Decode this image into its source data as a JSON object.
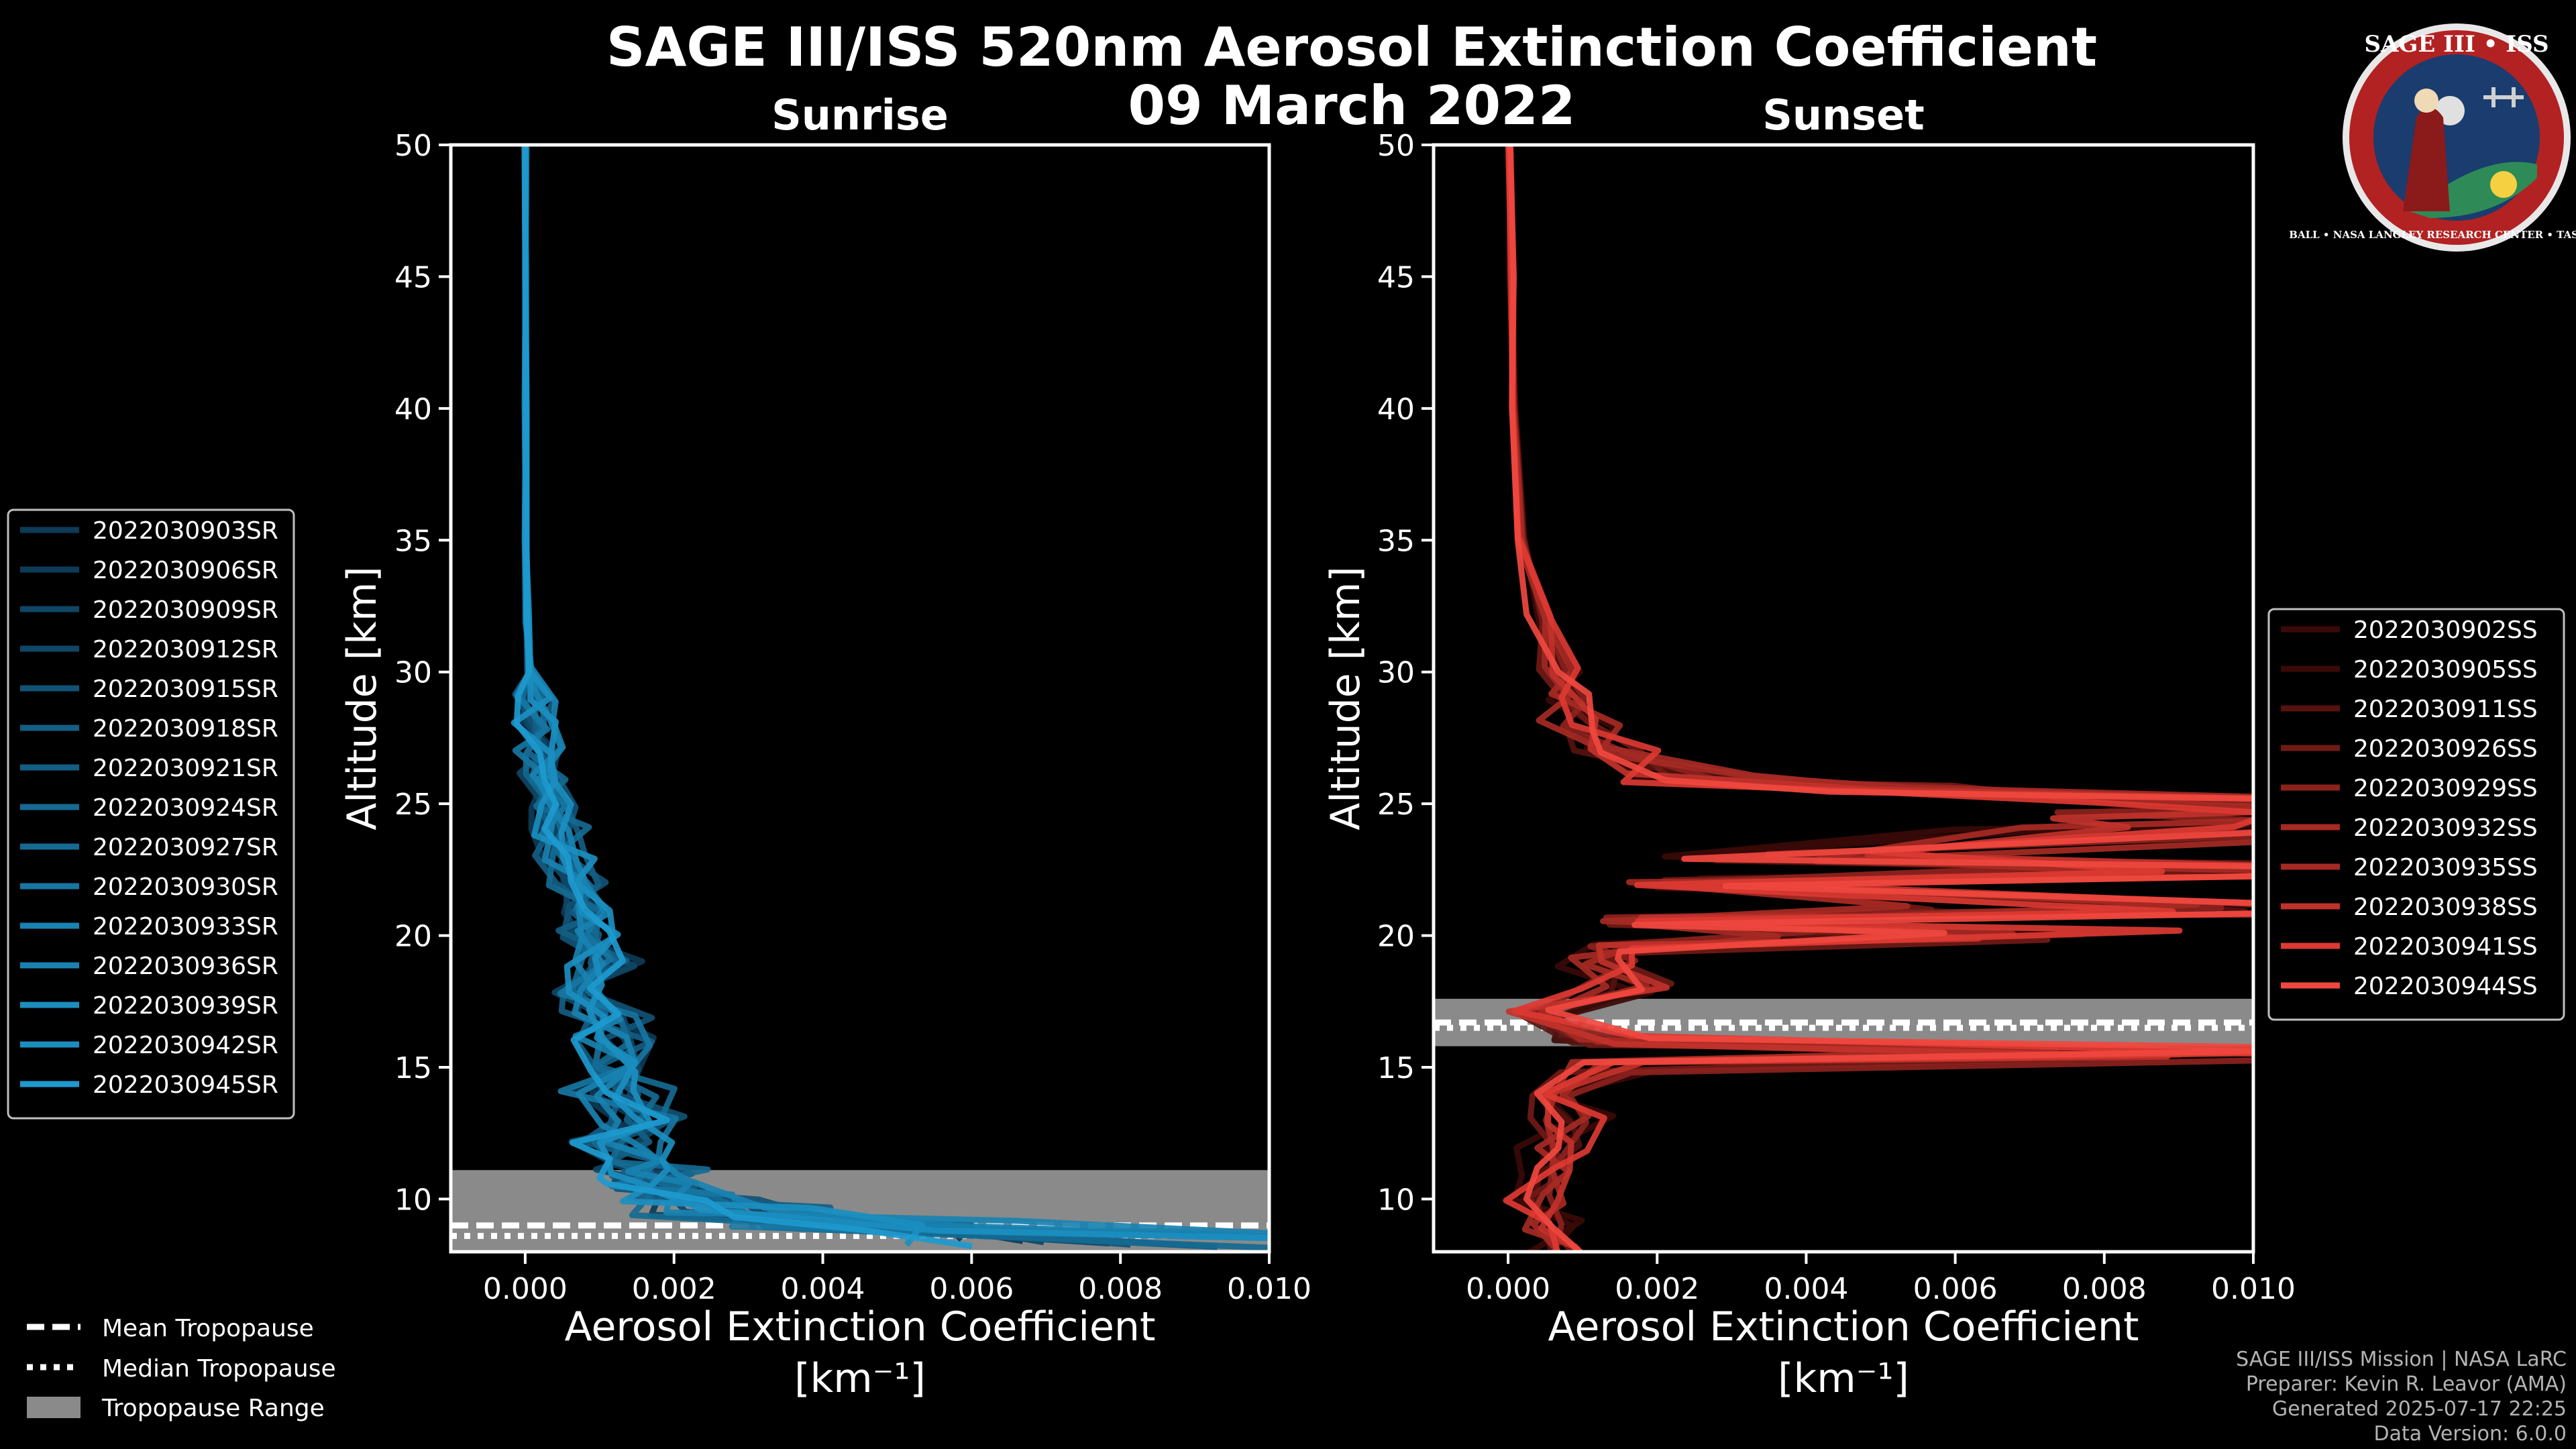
{
  "colors": {
    "background": "#000000",
    "sunrise_blues": [
      "#0d3a57",
      "#0f4666",
      "#115275",
      "#135e84",
      "#156a93",
      "#1776a2",
      "#1982b1",
      "#1b8ec0",
      "#1d9acf"
    ],
    "sunset_reds": [
      "#3a0a08",
      "#55120f",
      "#701a16",
      "#8b221d",
      "#a62a24",
      "#c1322b",
      "#dc3a32",
      "#f0483f"
    ],
    "tropopause_range": "#8a8a8a",
    "logo_ring": "#b22222",
    "logo_field": "#1a3c6e"
  },
  "figure": {
    "title": "SAGE III/ISS 520nm Aerosol Extinction Coefficient",
    "date": "09 March 2022"
  },
  "logo": {
    "top_text": "SAGE III • ISS",
    "ring_text": "BALL • NASA LANGLEY RESEARCH CENTER • TAS-I • ESA"
  },
  "chart_data": [
    {
      "type": "line",
      "title": "Sunrise",
      "xlabel": "Aerosol Extinction Coefficient",
      "xlabel_units": "[km⁻¹]",
      "ylabel": "Altitude [km]",
      "xlim": [
        -0.001,
        0.01
      ],
      "ylim": [
        8,
        50
      ],
      "xticks": [
        "0.000",
        "0.002",
        "0.004",
        "0.006",
        "0.008",
        "0.010"
      ],
      "xtick_values": [
        0,
        0.002,
        0.004,
        0.006,
        0.008,
        0.01
      ],
      "yticks": [
        "10",
        "15",
        "20",
        "25",
        "30",
        "35",
        "40",
        "45",
        "50"
      ],
      "ytick_values": [
        10,
        15,
        20,
        25,
        30,
        35,
        40,
        45,
        50
      ],
      "tropopause": {
        "mean": 9.0,
        "median": 8.6,
        "range": [
          8.0,
          11.1
        ]
      },
      "legend_position": "left",
      "series": [
        {
          "name": "2022030903SR"
        },
        {
          "name": "2022030906SR"
        },
        {
          "name": "2022030909SR"
        },
        {
          "name": "2022030912SR"
        },
        {
          "name": "2022030915SR"
        },
        {
          "name": "2022030918SR"
        },
        {
          "name": "2022030921SR"
        },
        {
          "name": "2022030924SR"
        },
        {
          "name": "2022030927SR"
        },
        {
          "name": "2022030930SR"
        },
        {
          "name": "2022030933SR"
        },
        {
          "name": "2022030936SR"
        },
        {
          "name": "2022030939SR"
        },
        {
          "name": "2022030942SR"
        },
        {
          "name": "2022030945SR"
        }
      ],
      "profile_altitudes": [
        8.3,
        9,
        9.5,
        10,
        10.5,
        11,
        11.5,
        12,
        13,
        14,
        15,
        16,
        17,
        18,
        19,
        20,
        21,
        22,
        23,
        24,
        25,
        26,
        27,
        28,
        29,
        30,
        32,
        35,
        40,
        45,
        50
      ],
      "profile_mean": [
        0.0095,
        0.0045,
        0.0028,
        0.0022,
        0.0018,
        0.0016,
        0.0015,
        0.0014,
        0.00135,
        0.0013,
        0.00125,
        0.0012,
        0.00112,
        0.00105,
        0.00095,
        0.0009,
        0.0008,
        0.0007,
        0.00055,
        0.00045,
        0.00035,
        0.00025,
        0.0002,
        0.00015,
        0.0001,
        6e-05,
        3e-05,
        1e-05,
        5e-06,
        3e-06,
        2e-06
      ]
    },
    {
      "type": "line",
      "title": "Sunset",
      "xlabel": "Aerosol Extinction Coefficient",
      "xlabel_units": "[km⁻¹]",
      "ylabel": "Altitude [km]",
      "xlim": [
        -0.001,
        0.01
      ],
      "ylim": [
        8,
        50
      ],
      "xticks": [
        "0.000",
        "0.002",
        "0.004",
        "0.006",
        "0.008",
        "0.010"
      ],
      "xtick_values": [
        0,
        0.002,
        0.004,
        0.006,
        0.008,
        0.01
      ],
      "yticks": [
        "10",
        "15",
        "20",
        "25",
        "30",
        "35",
        "40",
        "45",
        "50"
      ],
      "ytick_values": [
        10,
        15,
        20,
        25,
        30,
        35,
        40,
        45,
        50
      ],
      "tropopause": {
        "mean": 16.7,
        "median": 16.5,
        "range": [
          15.8,
          17.6
        ]
      },
      "legend_position": "right",
      "series": [
        {
          "name": "2022030902SS"
        },
        {
          "name": "2022030905SS"
        },
        {
          "name": "2022030911SS"
        },
        {
          "name": "2022030926SS"
        },
        {
          "name": "2022030929SS"
        },
        {
          "name": "2022030932SS"
        },
        {
          "name": "2022030935SS"
        },
        {
          "name": "2022030938SS"
        },
        {
          "name": "2022030941SS"
        },
        {
          "name": "2022030944SS"
        }
      ],
      "profile_altitudes": [
        8,
        9,
        10,
        11,
        12,
        13,
        14,
        15,
        15.5,
        16,
        17,
        18,
        19,
        19.5,
        20,
        20.5,
        21,
        22,
        22.5,
        23,
        24,
        24.5,
        25,
        25.5,
        26,
        27,
        28,
        29,
        30,
        32,
        35,
        40,
        45,
        50
      ],
      "profile_mean": [
        0.0008,
        0.0006,
        0.0004,
        0.0005,
        0.0007,
        0.0008,
        0.0006,
        0.0015,
        0.0085,
        0.0012,
        0.0004,
        0.0015,
        0.0012,
        0.001,
        0.0065,
        0.0012,
        0.009,
        0.0025,
        0.0105,
        0.0035,
        0.0105,
        0.0105,
        0.0105,
        0.006,
        0.0025,
        0.0012,
        0.0009,
        0.0008,
        0.0007,
        0.0004,
        0.0002,
        0.0001,
        5e-05,
        2e-05
      ]
    }
  ],
  "legend_bottom": {
    "mean": "Mean Tropopause",
    "median": "Median Tropopause",
    "range": "Tropopause Range"
  },
  "credits": {
    "line1": "SAGE III/ISS Mission | NASA LaRC",
    "line2": "Preparer: Kevin R. Leavor (AMA)",
    "line3": "Generated 2025-07-17 22:25",
    "line4": "Data Version: 6.0.0"
  }
}
